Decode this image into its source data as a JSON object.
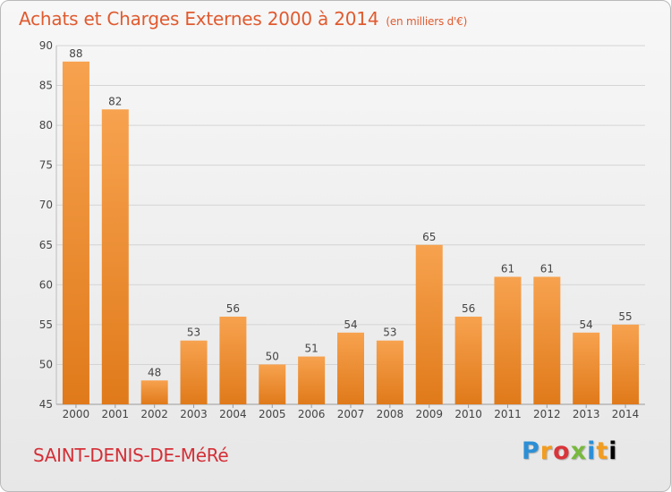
{
  "header": {
    "title": "Achats et Charges Externes 2000 à 2014",
    "subtitle": "(en milliers d'€)"
  },
  "footer": {
    "commune": "SAINT-DENIS-DE-MéRé",
    "logo": "Proxiti"
  },
  "colors": {
    "bar_top": "#f7a24f",
    "bar_bottom": "#e07a1a",
    "grid": "#d4d4d4",
    "title": "#e05a2f",
    "commune": "#d42f37"
  },
  "chart_data": {
    "type": "bar",
    "categories": [
      "2000",
      "2001",
      "2002",
      "2003",
      "2004",
      "2005",
      "2006",
      "2007",
      "2008",
      "2009",
      "2010",
      "2011",
      "2012",
      "2013",
      "2014"
    ],
    "values": [
      88,
      82,
      48,
      53,
      56,
      50,
      51,
      54,
      53,
      65,
      56,
      61,
      61,
      54,
      55
    ],
    "title": "Achats et Charges Externes 2000 à 2014",
    "subtitle": "(en milliers d'€)",
    "xlabel": "",
    "ylabel": "",
    "ylim": [
      45,
      90
    ],
    "yticks": [
      45,
      50,
      55,
      60,
      65,
      70,
      75,
      80,
      85,
      90
    ],
    "grid": true,
    "data_labels": true
  }
}
